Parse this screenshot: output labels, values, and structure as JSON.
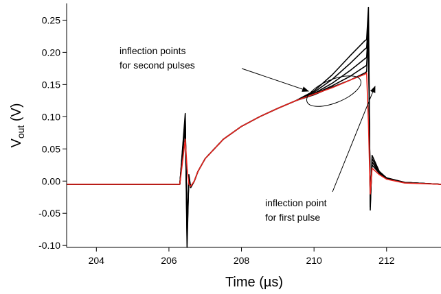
{
  "chart_data": {
    "type": "line",
    "xlabel": "Time (µs)",
    "ylabel": {
      "main": "V",
      "sub": "out",
      "unit": " (V)"
    },
    "annotations": [
      [
        "inflection points",
        "for second pulses"
      ],
      [
        "inflection point",
        "for first pulse"
      ]
    ],
    "x": [
      203.18,
      206.3,
      206.45,
      206.5,
      206.55,
      206.6,
      206.7,
      206.8,
      207,
      207.5,
      208,
      208.5,
      209,
      209.5,
      210,
      210.5,
      211,
      211.4,
      211.45,
      211.5,
      211.55,
      211.6,
      211.8,
      212,
      212.5,
      213.5
    ],
    "series": [
      {
        "color": "#000000",
        "values": [
          -0.005,
          -0.005,
          0.105,
          -0.103,
          0.01,
          -0.01,
          0.0,
          0.015,
          0.035,
          0.065,
          0.085,
          0.1,
          0.113,
          0.125,
          0.14,
          0.165,
          0.195,
          0.218,
          0.22,
          0.27,
          -0.045,
          0.04,
          0.015,
          0.005,
          -0.002,
          -0.005
        ]
      },
      {
        "color": "#000000",
        "values": [
          -0.005,
          -0.005,
          0.1,
          -0.09,
          0.008,
          -0.01,
          0.0,
          0.015,
          0.035,
          0.065,
          0.085,
          0.1,
          0.113,
          0.125,
          0.138,
          0.158,
          0.183,
          0.205,
          0.207,
          0.25,
          -0.04,
          0.035,
          0.014,
          0.005,
          -0.002,
          -0.005
        ]
      },
      {
        "color": "#000000",
        "values": [
          -0.005,
          -0.005,
          0.095,
          -0.08,
          0.006,
          -0.01,
          0.0,
          0.015,
          0.035,
          0.065,
          0.085,
          0.1,
          0.113,
          0.125,
          0.136,
          0.152,
          0.172,
          0.19,
          0.192,
          0.24,
          -0.035,
          0.03,
          0.013,
          0.004,
          -0.002,
          -0.005
        ]
      },
      {
        "color": "#000000",
        "values": [
          -0.005,
          -0.005,
          0.09,
          -0.07,
          0.005,
          -0.01,
          0.0,
          0.015,
          0.035,
          0.065,
          0.085,
          0.1,
          0.113,
          0.125,
          0.135,
          0.148,
          0.163,
          0.178,
          0.18,
          0.23,
          -0.03,
          0.03,
          0.012,
          0.004,
          -0.002,
          -0.005
        ]
      },
      {
        "color": "#000000",
        "values": [
          -0.005,
          -0.005,
          0.085,
          -0.06,
          0.004,
          -0.01,
          0.0,
          0.015,
          0.035,
          0.065,
          0.085,
          0.1,
          0.113,
          0.125,
          0.134,
          0.146,
          0.157,
          0.168,
          0.17,
          0.22,
          -0.03,
          0.025,
          0.012,
          0.004,
          -0.002,
          -0.005
        ]
      },
      {
        "color": "#e8231d",
        "values": [
          -0.005,
          -0.005,
          0.065,
          0.02,
          -0.005,
          -0.008,
          0.0,
          0.015,
          0.035,
          0.065,
          0.085,
          0.1,
          0.113,
          0.125,
          0.135,
          0.145,
          0.157,
          0.166,
          0.168,
          0.09,
          -0.02,
          0.02,
          0.01,
          0.003,
          -0.003,
          -0.005
        ]
      }
    ],
    "xlim": [
      203.18,
      213.5
    ],
    "xticks": [
      204,
      206,
      208,
      210,
      212
    ],
    "ylim": [
      -0.103,
      0.276
    ],
    "yticks": [
      {
        "value": 0.25,
        "label": "0.25"
      },
      {
        "value": 0.2,
        "label": "0.20"
      },
      {
        "value": 0.15,
        "label": "0.15"
      },
      {
        "value": 0.1,
        "label": "0.10"
      },
      {
        "value": 0.05,
        "label": "0.05"
      },
      {
        "value": 0,
        "label": "0.00"
      },
      {
        "value": -0.05,
        "label": "-0.05"
      },
      {
        "value": -0.1,
        "label": "-0.10"
      }
    ]
  }
}
